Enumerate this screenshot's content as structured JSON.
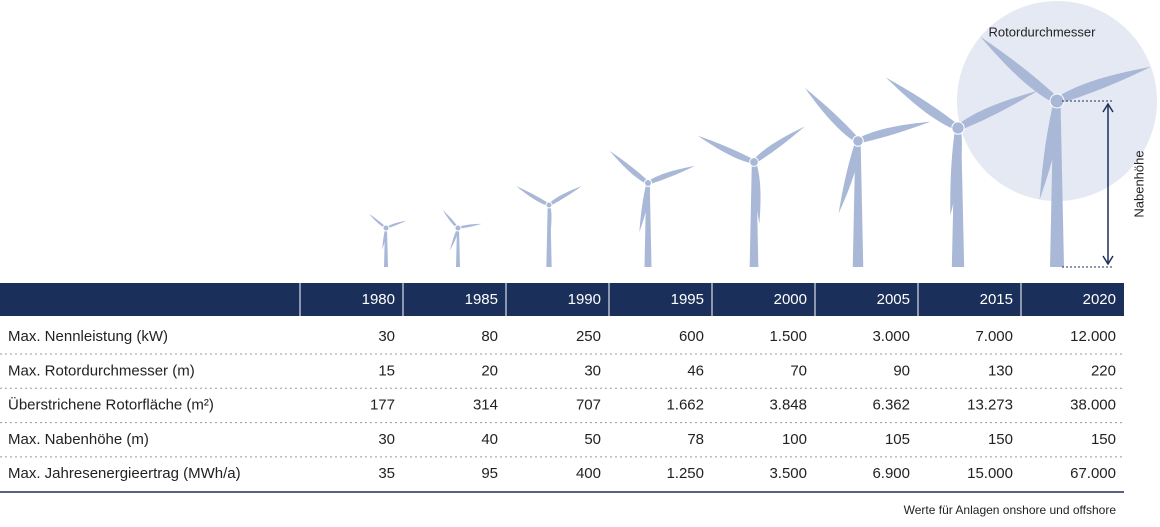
{
  "illustration": {
    "diameter_label": "Rotordurchmesser",
    "hub_height_label": "Nabenhöhe"
  },
  "table": {
    "header": [
      "1980",
      "1985",
      "1990",
      "1995",
      "2000",
      "2005",
      "2015",
      "2020"
    ],
    "rows": [
      [
        "Max. Nennleistung (kW)",
        "30",
        "80",
        "250",
        "600",
        "1.500",
        "3.000",
        "7.000",
        "12.000"
      ],
      [
        "Max. Rotordurchmesser (m)",
        "15",
        "20",
        "30",
        "46",
        "70",
        "90",
        "130",
        "220"
      ],
      [
        "Überstrichene Rotorfläche (m²)",
        "177",
        "314",
        "707",
        "1.662",
        "3.848",
        "6.362",
        "13.273",
        "38.000"
      ],
      [
        "Max. Nabenhöhe (m)",
        "30",
        "40",
        "50",
        "78",
        "100",
        "105",
        "150",
        "150"
      ],
      [
        "Max. Jahresenergieertrag (MWh/a)",
        "35",
        "95",
        "400",
        "1.250",
        "3.500",
        "6.900",
        "15.000",
        "67.000"
      ]
    ]
  },
  "footnote": "Werte für Anlagen onshore und offshore"
}
